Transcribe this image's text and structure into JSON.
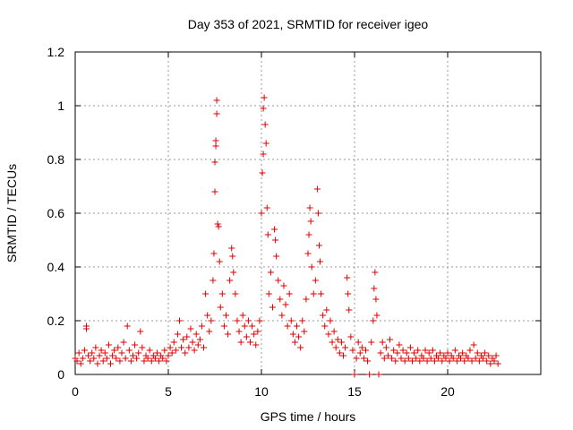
{
  "chart_data": {
    "type": "scatter",
    "title": "Day 353 of 2021, SRMTID for receiver igeo",
    "xlabel": "GPS time / hours",
    "ylabel": "SRMTID / TECUs",
    "xlim": [
      0,
      25
    ],
    "ylim": [
      0,
      1.2
    ],
    "xticks": [
      0,
      5,
      10,
      15,
      20
    ],
    "xtick_labels": [
      "0",
      "5",
      "10",
      "15",
      "20"
    ],
    "yticks": [
      0,
      0.2,
      0.4,
      0.6,
      0.8,
      1,
      1.2
    ],
    "ytick_labels": [
      "0",
      "0.2",
      "0.4",
      "0.6",
      "0.8",
      "1",
      "1.2"
    ],
    "grid": true,
    "marker": "+",
    "series_color": "#e00000",
    "series": [
      {
        "name": "SRMTID",
        "points": [
          [
            0.0,
            0.06
          ],
          [
            0.1,
            0.05
          ],
          [
            0.2,
            0.08
          ],
          [
            0.3,
            0.04
          ],
          [
            0.4,
            0.06
          ],
          [
            0.5,
            0.09
          ],
          [
            0.6,
            0.17
          ],
          [
            0.6,
            0.18
          ],
          [
            0.7,
            0.07
          ],
          [
            0.8,
            0.05
          ],
          [
            0.9,
            0.08
          ],
          [
            1.0,
            0.06
          ],
          [
            1.1,
            0.1
          ],
          [
            1.2,
            0.04
          ],
          [
            1.3,
            0.07
          ],
          [
            1.4,
            0.09
          ],
          [
            1.5,
            0.05
          ],
          [
            1.6,
            0.08
          ],
          [
            1.7,
            0.06
          ],
          [
            1.8,
            0.11
          ],
          [
            1.9,
            0.04
          ],
          [
            2.0,
            0.07
          ],
          [
            2.1,
            0.09
          ],
          [
            2.2,
            0.06
          ],
          [
            2.3,
            0.1
          ],
          [
            2.4,
            0.05
          ],
          [
            2.5,
            0.08
          ],
          [
            2.6,
            0.12
          ],
          [
            2.7,
            0.06
          ],
          [
            2.8,
            0.18
          ],
          [
            2.9,
            0.09
          ],
          [
            3.0,
            0.05
          ],
          [
            3.1,
            0.07
          ],
          [
            3.2,
            0.11
          ],
          [
            3.3,
            0.06
          ],
          [
            3.4,
            0.08
          ],
          [
            3.5,
            0.16
          ],
          [
            3.6,
            0.1
          ],
          [
            3.7,
            0.05
          ],
          [
            3.8,
            0.07
          ],
          [
            3.9,
            0.06
          ],
          [
            4.0,
            0.09
          ],
          [
            4.1,
            0.05
          ],
          [
            4.2,
            0.07
          ],
          [
            4.3,
            0.06
          ],
          [
            4.4,
            0.08
          ],
          [
            4.5,
            0.05
          ],
          [
            4.6,
            0.07
          ],
          [
            4.7,
            0.06
          ],
          [
            4.8,
            0.09
          ],
          [
            4.9,
            0.05
          ],
          [
            5.0,
            0.07
          ],
          [
            5.1,
            0.1
          ],
          [
            5.2,
            0.08
          ],
          [
            5.3,
            0.12
          ],
          [
            5.4,
            0.09
          ],
          [
            5.5,
            0.15
          ],
          [
            5.6,
            0.2
          ],
          [
            5.7,
            0.1
          ],
          [
            5.8,
            0.13
          ],
          [
            5.9,
            0.08
          ],
          [
            6.0,
            0.14
          ],
          [
            6.1,
            0.1
          ],
          [
            6.2,
            0.17
          ],
          [
            6.3,
            0.12
          ],
          [
            6.4,
            0.09
          ],
          [
            6.5,
            0.15
          ],
          [
            6.6,
            0.11
          ],
          [
            6.7,
            0.13
          ],
          [
            6.8,
            0.18
          ],
          [
            6.9,
            0.1
          ],
          [
            7.0,
            0.3
          ],
          [
            7.1,
            0.22
          ],
          [
            7.2,
            0.16
          ],
          [
            7.3,
            0.2
          ],
          [
            7.4,
            0.35
          ],
          [
            7.45,
            0.45
          ],
          [
            7.5,
            0.68
          ],
          [
            7.5,
            0.79
          ],
          [
            7.55,
            0.87
          ],
          [
            7.55,
            0.85
          ],
          [
            7.6,
            1.02
          ],
          [
            7.6,
            0.97
          ],
          [
            7.65,
            0.56
          ],
          [
            7.7,
            0.55
          ],
          [
            7.75,
            0.42
          ],
          [
            7.8,
            0.25
          ],
          [
            7.9,
            0.3
          ],
          [
            8.0,
            0.18
          ],
          [
            8.1,
            0.22
          ],
          [
            8.2,
            0.15
          ],
          [
            8.3,
            0.35
          ],
          [
            8.4,
            0.47
          ],
          [
            8.45,
            0.44
          ],
          [
            8.5,
            0.38
          ],
          [
            8.6,
            0.3
          ],
          [
            8.7,
            0.2
          ],
          [
            8.8,
            0.16
          ],
          [
            8.9,
            0.12
          ],
          [
            9.0,
            0.22
          ],
          [
            9.1,
            0.18
          ],
          [
            9.2,
            0.14
          ],
          [
            9.3,
            0.2
          ],
          [
            9.4,
            0.12
          ],
          [
            9.5,
            0.18
          ],
          [
            9.6,
            0.15
          ],
          [
            9.7,
            0.11
          ],
          [
            9.8,
            0.16
          ],
          [
            9.9,
            0.2
          ],
          [
            10.0,
            0.6
          ],
          [
            10.05,
            0.75
          ],
          [
            10.1,
            0.82
          ],
          [
            10.1,
            0.99
          ],
          [
            10.15,
            1.03
          ],
          [
            10.2,
            0.93
          ],
          [
            10.25,
            0.86
          ],
          [
            10.3,
            0.62
          ],
          [
            10.35,
            0.52
          ],
          [
            10.4,
            0.3
          ],
          [
            10.5,
            0.38
          ],
          [
            10.6,
            0.25
          ],
          [
            10.7,
            0.54
          ],
          [
            10.75,
            0.5
          ],
          [
            10.8,
            0.44
          ],
          [
            10.9,
            0.35
          ],
          [
            11.0,
            0.28
          ],
          [
            11.1,
            0.22
          ],
          [
            11.2,
            0.33
          ],
          [
            11.3,
            0.26
          ],
          [
            11.4,
            0.18
          ],
          [
            11.5,
            0.3
          ],
          [
            11.6,
            0.2
          ],
          [
            11.7,
            0.15
          ],
          [
            11.8,
            0.12
          ],
          [
            11.9,
            0.18
          ],
          [
            12.0,
            0.14
          ],
          [
            12.1,
            0.1
          ],
          [
            12.2,
            0.2
          ],
          [
            12.3,
            0.16
          ],
          [
            12.4,
            0.28
          ],
          [
            12.5,
            0.45
          ],
          [
            12.55,
            0.52
          ],
          [
            12.6,
            0.62
          ],
          [
            12.65,
            0.57
          ],
          [
            12.7,
            0.4
          ],
          [
            12.8,
            0.3
          ],
          [
            12.9,
            0.35
          ],
          [
            13.0,
            0.69
          ],
          [
            13.05,
            0.6
          ],
          [
            13.1,
            0.48
          ],
          [
            13.15,
            0.42
          ],
          [
            13.2,
            0.3
          ],
          [
            13.3,
            0.22
          ],
          [
            13.4,
            0.18
          ],
          [
            13.5,
            0.24
          ],
          [
            13.6,
            0.15
          ],
          [
            13.7,
            0.2
          ],
          [
            13.8,
            0.12
          ],
          [
            13.9,
            0.16
          ],
          [
            14.0,
            0.1
          ],
          [
            14.1,
            0.13
          ],
          [
            14.2,
            0.08
          ],
          [
            14.3,
            0.12
          ],
          [
            14.4,
            0.07
          ],
          [
            14.5,
            0.1
          ],
          [
            14.6,
            0.36
          ],
          [
            14.65,
            0.3
          ],
          [
            14.7,
            0.24
          ],
          [
            14.8,
            0.14
          ],
          [
            14.9,
            0.09
          ],
          [
            15.0,
            0.0
          ],
          [
            15.1,
            0.06
          ],
          [
            15.2,
            0.12
          ],
          [
            15.3,
            0.08
          ],
          [
            15.4,
            0.1
          ],
          [
            15.5,
            0.06
          ],
          [
            15.6,
            0.09
          ],
          [
            15.7,
            0.05
          ],
          [
            15.8,
            0.0
          ],
          [
            15.9,
            0.12
          ],
          [
            16.0,
            0.2
          ],
          [
            16.05,
            0.32
          ],
          [
            16.1,
            0.38
          ],
          [
            16.15,
            0.28
          ],
          [
            16.2,
            0.22
          ],
          [
            16.3,
            0.0
          ],
          [
            16.4,
            0.08
          ],
          [
            16.5,
            0.12
          ],
          [
            16.6,
            0.06
          ],
          [
            16.7,
            0.1
          ],
          [
            16.8,
            0.07
          ],
          [
            16.9,
            0.13
          ],
          [
            17.0,
            0.06
          ],
          [
            17.1,
            0.09
          ],
          [
            17.2,
            0.05
          ],
          [
            17.3,
            0.08
          ],
          [
            17.4,
            0.11
          ],
          [
            17.5,
            0.06
          ],
          [
            17.6,
            0.09
          ],
          [
            17.7,
            0.05
          ],
          [
            17.8,
            0.08
          ],
          [
            17.9,
            0.06
          ],
          [
            18.0,
            0.1
          ],
          [
            18.1,
            0.05
          ],
          [
            18.2,
            0.08
          ],
          [
            18.3,
            0.06
          ],
          [
            18.4,
            0.09
          ],
          [
            18.5,
            0.05
          ],
          [
            18.6,
            0.07
          ],
          [
            18.7,
            0.06
          ],
          [
            18.8,
            0.09
          ],
          [
            18.9,
            0.05
          ],
          [
            19.0,
            0.08
          ],
          [
            19.1,
            0.06
          ],
          [
            19.2,
            0.09
          ],
          [
            19.3,
            0.05
          ],
          [
            19.4,
            0.07
          ],
          [
            19.5,
            0.06
          ],
          [
            19.6,
            0.08
          ],
          [
            19.7,
            0.05
          ],
          [
            19.8,
            0.07
          ],
          [
            19.9,
            0.06
          ],
          [
            20.0,
            0.08
          ],
          [
            20.1,
            0.05
          ],
          [
            20.2,
            0.07
          ],
          [
            20.3,
            0.06
          ],
          [
            20.4,
            0.09
          ],
          [
            20.5,
            0.05
          ],
          [
            20.6,
            0.07
          ],
          [
            20.7,
            0.06
          ],
          [
            20.8,
            0.08
          ],
          [
            20.9,
            0.05
          ],
          [
            21.0,
            0.07
          ],
          [
            21.1,
            0.06
          ],
          [
            21.2,
            0.09
          ],
          [
            21.3,
            0.05
          ],
          [
            21.4,
            0.11
          ],
          [
            21.5,
            0.06
          ],
          [
            21.6,
            0.08
          ],
          [
            21.7,
            0.05
          ],
          [
            21.8,
            0.07
          ],
          [
            21.9,
            0.06
          ],
          [
            22.0,
            0.08
          ],
          [
            22.1,
            0.05
          ],
          [
            22.2,
            0.07
          ],
          [
            22.3,
            0.04
          ],
          [
            22.4,
            0.06
          ],
          [
            22.5,
            0.05
          ],
          [
            22.6,
            0.07
          ],
          [
            22.7,
            0.04
          ]
        ]
      }
    ]
  }
}
